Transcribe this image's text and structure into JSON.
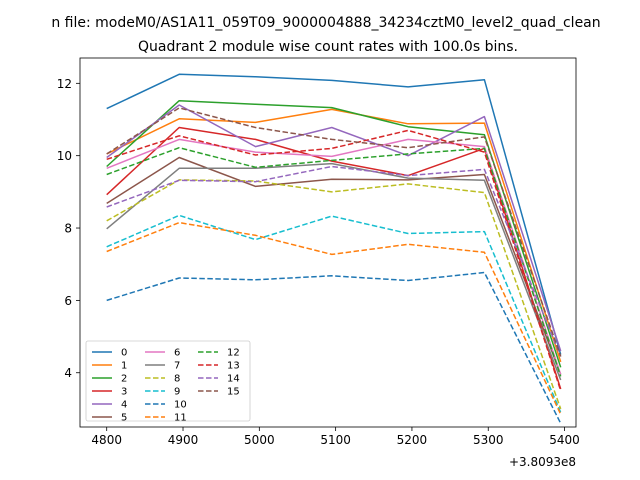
{
  "chart_data": {
    "type": "line",
    "suptitle": "n file: modeM0/AS1A11_059T09_9000004888_34234cztM0_level2_quad_clean",
    "title": "Quadrant 2 module wise count rates with 100.0s bins.",
    "xlabel": "",
    "ylabel": "",
    "x": [
      4800,
      4895,
      4995,
      5095,
      5195,
      5295,
      5395
    ],
    "x_offset_label": "+3.8093e8",
    "xlim": [
      4765,
      5415
    ],
    "ylim": [
      2.5,
      12.7
    ],
    "xticks": [
      4800,
      4900,
      5000,
      5100,
      5200,
      5300,
      5400
    ],
    "yticks": [
      4,
      6,
      8,
      10,
      12
    ],
    "grid": false,
    "legend_position": "lower-left",
    "series": [
      {
        "name": "0",
        "color": "#1f77b4",
        "dash": "solid",
        "values": [
          11.3,
          12.25,
          12.18,
          12.08,
          11.9,
          12.1,
          4.5
        ]
      },
      {
        "name": "1",
        "color": "#ff7f0e",
        "dash": "solid",
        "values": [
          10.05,
          11.02,
          10.92,
          11.28,
          10.88,
          10.9,
          4.3
        ]
      },
      {
        "name": "2",
        "color": "#2ca02c",
        "dash": "solid",
        "values": [
          9.7,
          11.52,
          11.42,
          11.33,
          10.8,
          10.58,
          4.15
        ]
      },
      {
        "name": "3",
        "color": "#d62728",
        "dash": "solid",
        "values": [
          8.92,
          10.78,
          10.45,
          9.85,
          9.45,
          10.2,
          3.55
        ]
      },
      {
        "name": "4",
        "color": "#9467bd",
        "dash": "solid",
        "values": [
          9.95,
          11.4,
          10.25,
          10.78,
          10.0,
          11.08,
          4.6
        ]
      },
      {
        "name": "5",
        "color": "#8c564b",
        "dash": "solid",
        "values": [
          8.68,
          9.95,
          9.15,
          9.35,
          9.33,
          9.48,
          3.95
        ]
      },
      {
        "name": "6",
        "color": "#e377c2",
        "dash": "solid",
        "values": [
          9.65,
          10.45,
          10.1,
          9.98,
          10.45,
          10.25,
          3.95
        ]
      },
      {
        "name": "7",
        "color": "#7f7f7f",
        "dash": "solid",
        "values": [
          7.98,
          9.65,
          9.65,
          9.78,
          9.38,
          9.32,
          3.8
        ]
      },
      {
        "name": "8",
        "color": "#bcbd22",
        "dash": "dashed",
        "values": [
          8.2,
          9.33,
          9.3,
          9.0,
          9.22,
          8.98,
          3.0
        ]
      },
      {
        "name": "9",
        "color": "#17becf",
        "dash": "dashed",
        "values": [
          7.48,
          8.35,
          7.68,
          8.33,
          7.85,
          7.9,
          2.9
        ]
      },
      {
        "name": "10",
        "color": "#1f77b4",
        "dash": "dashed",
        "values": [
          6.0,
          6.62,
          6.57,
          6.68,
          6.55,
          6.77,
          2.6
        ]
      },
      {
        "name": "11",
        "color": "#ff7f0e",
        "dash": "dashed",
        "values": [
          7.35,
          8.15,
          7.8,
          7.27,
          7.55,
          7.33,
          2.85
        ]
      },
      {
        "name": "12",
        "color": "#2ca02c",
        "dash": "dashed",
        "values": [
          9.48,
          10.22,
          9.68,
          9.87,
          10.05,
          10.2,
          3.9
        ]
      },
      {
        "name": "13",
        "color": "#d62728",
        "dash": "dashed",
        "values": [
          9.9,
          10.55,
          10.02,
          10.2,
          10.7,
          10.1,
          3.5
        ]
      },
      {
        "name": "14",
        "color": "#9467bd",
        "dash": "dashed",
        "values": [
          8.58,
          9.32,
          9.28,
          9.7,
          9.45,
          9.62,
          4.45
        ]
      },
      {
        "name": "15",
        "color": "#8c564b",
        "dash": "dashed",
        "values": [
          10.05,
          11.32,
          10.78,
          10.45,
          10.22,
          10.52,
          4.45
        ]
      }
    ]
  }
}
